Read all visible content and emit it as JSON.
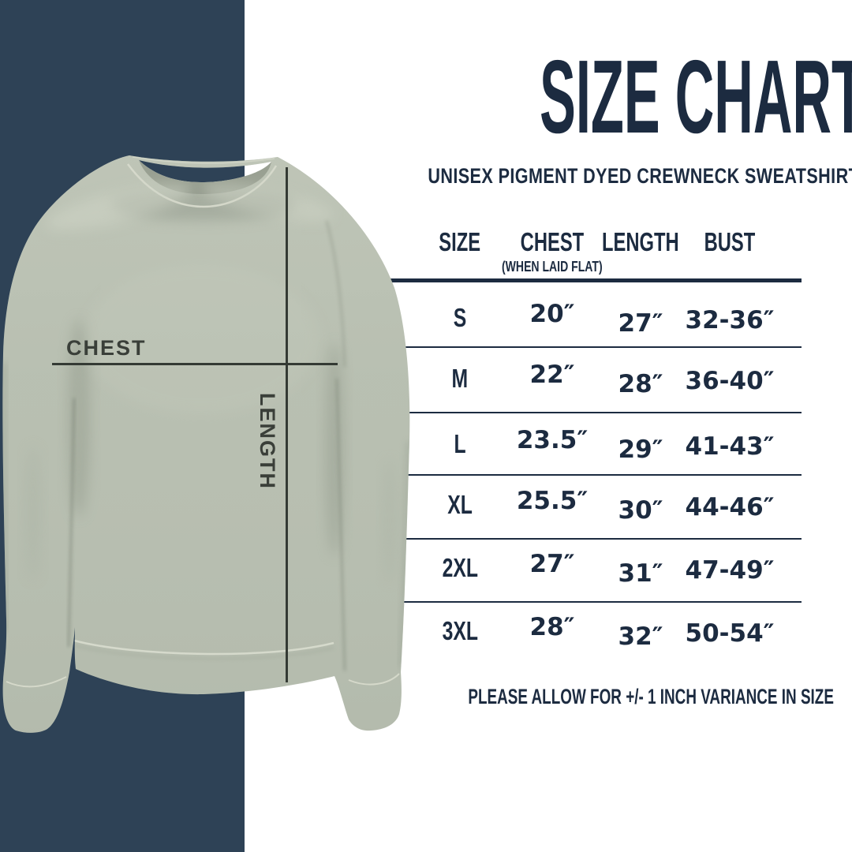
{
  "colors": {
    "background": "#ffffff",
    "navy_band": "#2e4256",
    "navy_text": "#1c2b40",
    "sweatshirt_sage": "#b7beb0",
    "measure_line": "#343a34",
    "measure_label": "#3a3f39"
  },
  "garment": {
    "chest_label": "CHEST",
    "length_label": "LENGTH"
  },
  "chart_data": {
    "type": "table",
    "title": "SIZE CHART",
    "subtitle": "UNISEX PIGMENT DYED CREWNECK SWEATSHIRT",
    "columns": [
      "SIZE",
      "CHEST",
      "LENGTH",
      "BUST"
    ],
    "chest_column_note": "(WHEN LAID FLAT)",
    "rows": [
      [
        "S",
        "20″",
        "27″",
        "32-36″"
      ],
      [
        "M",
        "22″",
        "28″",
        "36-40″"
      ],
      [
        "L",
        "23.5″",
        "29″",
        "41-43″"
      ],
      [
        "XL",
        "25.5″",
        "30″",
        "44-46″"
      ],
      [
        "2XL",
        "27″",
        "31″",
        "47-49″"
      ],
      [
        "3XL",
        "28″",
        "32″",
        "50-54″"
      ]
    ],
    "footnote": "PLEASE ALLOW FOR +/- 1 INCH VARIANCE IN SIZE"
  }
}
